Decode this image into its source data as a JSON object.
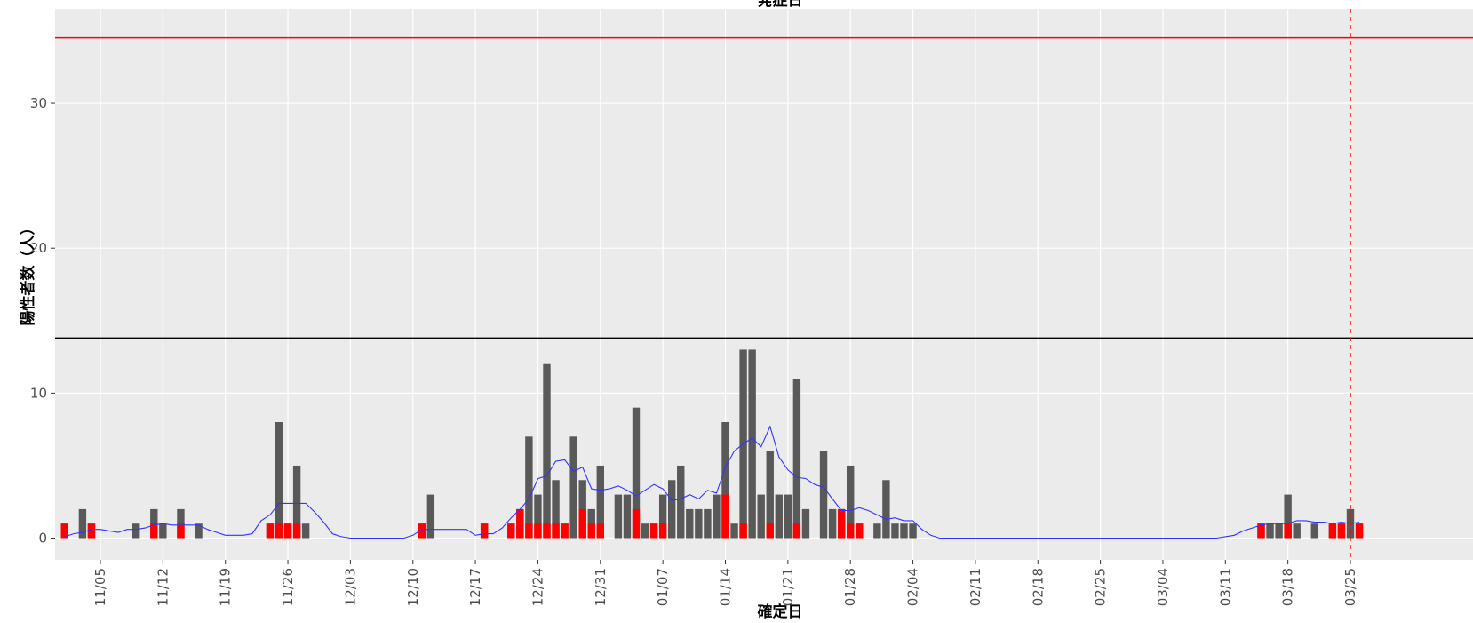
{
  "chart_data": {
    "type": "bar",
    "title": "発症日",
    "xlabel": "確定日",
    "ylabel": "陽性者数（人）",
    "ylim": [
      -1.5,
      36.5
    ],
    "yticks": [
      0,
      10,
      20,
      30
    ],
    "xticks": [
      "11/05",
      "11/12",
      "11/19",
      "11/26",
      "12/03",
      "12/10",
      "12/17",
      "12/24",
      "12/31",
      "01/07",
      "01/14",
      "01/21",
      "01/28",
      "02/04",
      "02/11",
      "02/18",
      "02/25",
      "03/04",
      "03/11",
      "03/18",
      "03/25"
    ],
    "x_start": "11/01",
    "reference_lines": [
      {
        "name": "upper-threshold",
        "y": 34.5,
        "color": "#ff0000",
        "style": "solid"
      },
      {
        "name": "lower-threshold",
        "y": 13.8,
        "color": "#000000",
        "style": "solid"
      }
    ],
    "vline": {
      "x": "03/25",
      "color": "#ff0000",
      "style": "dashed"
    },
    "colors": {
      "panel": "#ebebeb",
      "total": "#595959",
      "highlight": "#ff0000",
      "trend": "#3333ff"
    },
    "series": [
      {
        "dates": [
          "11/01",
          "11/03",
          "11/04",
          "11/09",
          "11/11",
          "11/12",
          "11/14",
          "11/16",
          "11/24",
          "11/25",
          "11/26",
          "11/27",
          "11/28",
          "12/11",
          "12/12",
          "12/18",
          "12/21",
          "12/22",
          "12/23",
          "12/24",
          "12/25",
          "12/26",
          "12/27",
          "12/28",
          "12/29",
          "12/30",
          "12/31",
          "01/01",
          "01/02",
          "01/03",
          "01/04",
          "01/05",
          "01/06",
          "01/07",
          "01/08",
          "01/09",
          "01/10",
          "01/11",
          "01/12",
          "01/13",
          "01/14",
          "01/15",
          "01/16",
          "01/17",
          "01/18",
          "01/19",
          "01/20",
          "01/21",
          "01/22",
          "01/23",
          "01/25",
          "01/26",
          "01/27",
          "01/28",
          "01/29",
          "01/31",
          "02/01",
          "02/02",
          "02/03",
          "02/04",
          "03/15",
          "03/16",
          "03/17",
          "03/18",
          "03/19",
          "03/21",
          "03/23",
          "03/24",
          "03/25",
          "03/26"
        ],
        "total": [
          1,
          2,
          1,
          1,
          2,
          1,
          2,
          1,
          1,
          8,
          1,
          5,
          1,
          1,
          3,
          1,
          1,
          2,
          7,
          3,
          12,
          4,
          1,
          7,
          4,
          2,
          5,
          0,
          3,
          3,
          9,
          1,
          1,
          3,
          4,
          5,
          2,
          2,
          2,
          3,
          8,
          1,
          13,
          13,
          3,
          6,
          3,
          3,
          11,
          2,
          6,
          2,
          2,
          5,
          1,
          1,
          4,
          1,
          1,
          1,
          1,
          1,
          1,
          3,
          1,
          1,
          1,
          1,
          2,
          1
        ],
        "highlight": [
          1,
          0,
          1,
          0,
          1,
          0,
          1,
          0,
          1,
          1,
          1,
          1,
          0,
          1,
          0,
          1,
          1,
          2,
          1,
          1,
          1,
          1,
          1,
          0,
          2,
          1,
          1,
          0,
          0,
          0,
          2,
          0,
          1,
          1,
          0,
          0,
          0,
          0,
          0,
          0,
          3,
          0,
          1,
          0,
          0,
          1,
          0,
          0,
          1,
          0,
          0,
          0,
          2,
          1,
          1,
          0,
          0,
          0,
          0,
          0,
          1,
          0,
          0,
          1,
          0,
          0,
          1,
          1,
          0,
          1
        ]
      }
    ],
    "trend": {
      "name": "7-day average",
      "dates": [
        "11/01",
        "11/02",
        "11/03",
        "11/04",
        "11/05",
        "11/06",
        "11/07",
        "11/08",
        "11/09",
        "11/10",
        "11/11",
        "11/12",
        "11/13",
        "11/14",
        "11/15",
        "11/16",
        "11/17",
        "11/18",
        "11/19",
        "11/20",
        "11/21",
        "11/22",
        "11/23",
        "11/24",
        "11/25",
        "11/26",
        "11/27",
        "11/28",
        "11/29",
        "11/30",
        "12/01",
        "12/02",
        "12/03",
        "12/04",
        "12/05",
        "12/06",
        "12/07",
        "12/08",
        "12/09",
        "12/10",
        "12/11",
        "12/12",
        "12/13",
        "12/14",
        "12/15",
        "12/16",
        "12/17",
        "12/18",
        "12/19",
        "12/20",
        "12/21",
        "12/22",
        "12/23",
        "12/24",
        "12/25",
        "12/26",
        "12/27",
        "12/28",
        "12/29",
        "12/30",
        "12/31",
        "01/01",
        "01/02",
        "01/03",
        "01/04",
        "01/05",
        "01/06",
        "01/07",
        "01/08",
        "01/09",
        "01/10",
        "01/11",
        "01/12",
        "01/13",
        "01/14",
        "01/15",
        "01/16",
        "01/17",
        "01/18",
        "01/19",
        "01/20",
        "01/21",
        "01/22",
        "01/23",
        "01/24",
        "01/25",
        "01/26",
        "01/27",
        "01/28",
        "01/29",
        "01/30",
        "01/31",
        "02/01",
        "02/02",
        "02/03",
        "02/04",
        "02/05",
        "02/06",
        "02/07",
        "02/08",
        "03/09",
        "03/10",
        "03/11",
        "03/12",
        "03/13",
        "03/14",
        "03/15",
        "03/16",
        "03/17",
        "03/18",
        "03/19",
        "03/20",
        "03/21",
        "03/22",
        "03/23",
        "03/24",
        "03/25",
        "03/26"
      ],
      "values": [
        0.1,
        0.3,
        0.4,
        0.6,
        0.6,
        0.5,
        0.4,
        0.6,
        0.6,
        0.7,
        0.9,
        1.0,
        0.9,
        0.9,
        0.9,
        0.9,
        0.6,
        0.4,
        0.2,
        0.2,
        0.2,
        0.3,
        1.2,
        1.6,
        2.4,
        2.4,
        2.4,
        2.4,
        1.8,
        1.1,
        0.3,
        0.1,
        0.0,
        0.0,
        0.0,
        0.0,
        0.0,
        0.0,
        0.0,
        0.2,
        0.6,
        0.6,
        0.6,
        0.6,
        0.6,
        0.6,
        0.2,
        0.3,
        0.3,
        0.7,
        1.4,
        2.0,
        2.7,
        4.1,
        4.3,
        5.3,
        5.4,
        4.6,
        4.9,
        3.4,
        3.3,
        3.4,
        3.6,
        3.3,
        2.9,
        3.3,
        3.7,
        3.4,
        2.6,
        2.7,
        3.0,
        2.7,
        3.3,
        3.1,
        4.9,
        6.0,
        6.5,
        6.9,
        6.3,
        7.7,
        5.6,
        4.7,
        4.2,
        4.1,
        3.7,
        3.5,
        2.7,
        1.9,
        1.9,
        2.1,
        1.9,
        1.6,
        1.3,
        1.4,
        1.2,
        1.2,
        0.6,
        0.2,
        0.0,
        0.0,
        0.0,
        0.0,
        0.1,
        0.2,
        0.5,
        0.7,
        0.9,
        1.0,
        1.0,
        1.0,
        1.2,
        1.2,
        1.1,
        1.1,
        1.0,
        1.1,
        1.0,
        1.1
      ]
    }
  }
}
